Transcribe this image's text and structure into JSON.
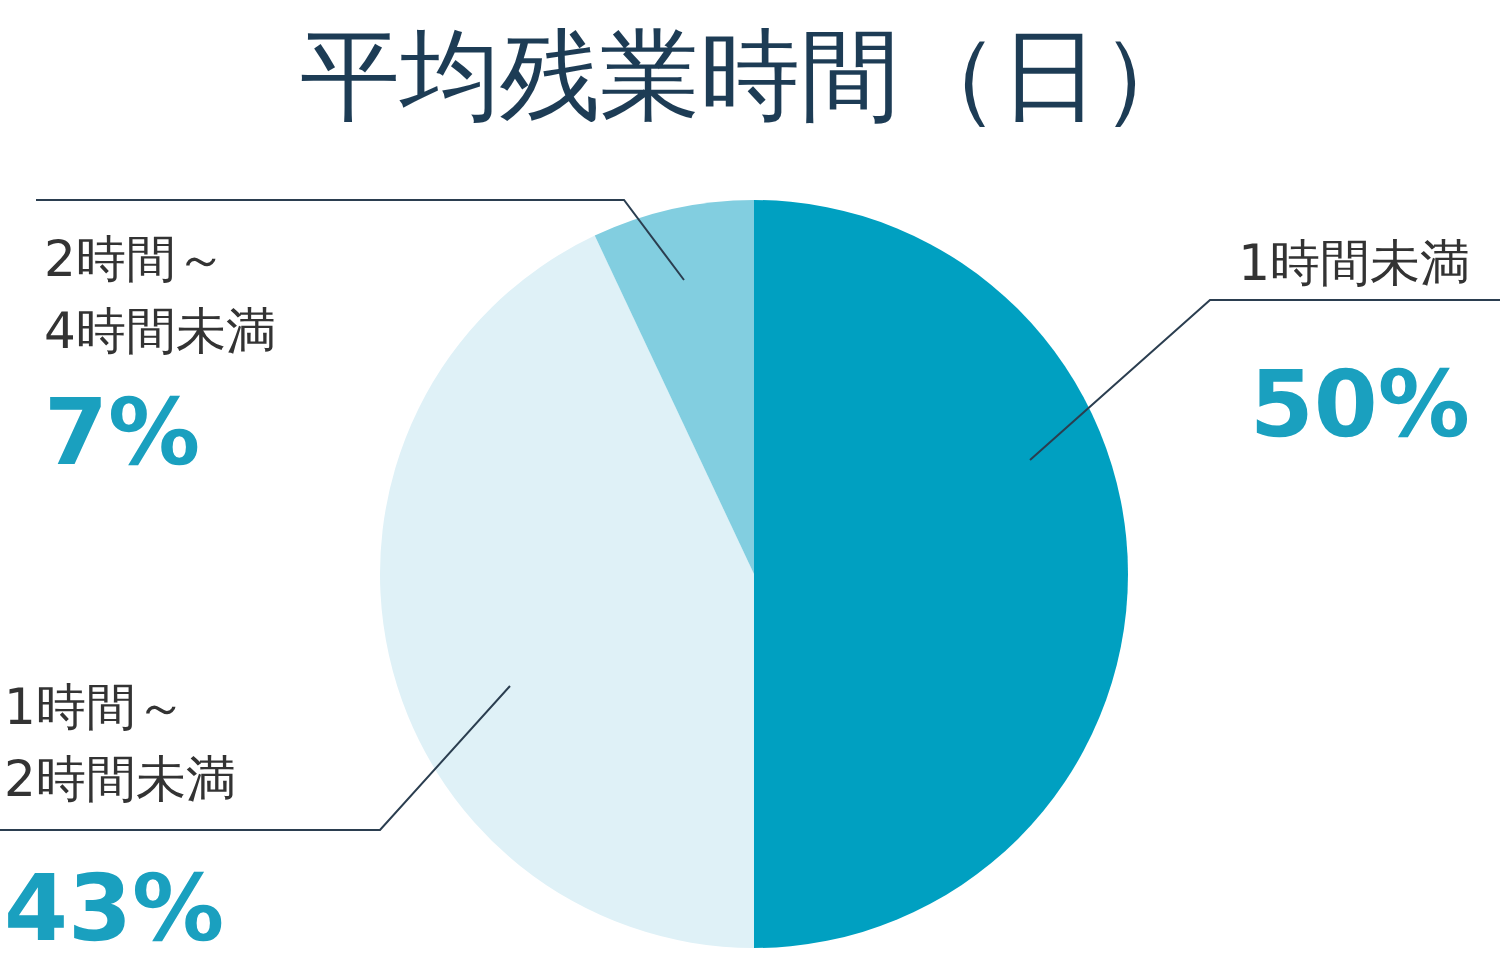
{
  "chart_data": {
    "type": "pie",
    "title": "平均残業時間（日）",
    "categories": [
      "1時間未満",
      "1時間～2時間未満",
      "2時間～4時間未満"
    ],
    "values": [
      50,
      43,
      7
    ],
    "colors": [
      "#00a0c1",
      "#dff1f7",
      "#82cee0"
    ],
    "value_labels": [
      "50%",
      "43%",
      "7%"
    ]
  }
}
